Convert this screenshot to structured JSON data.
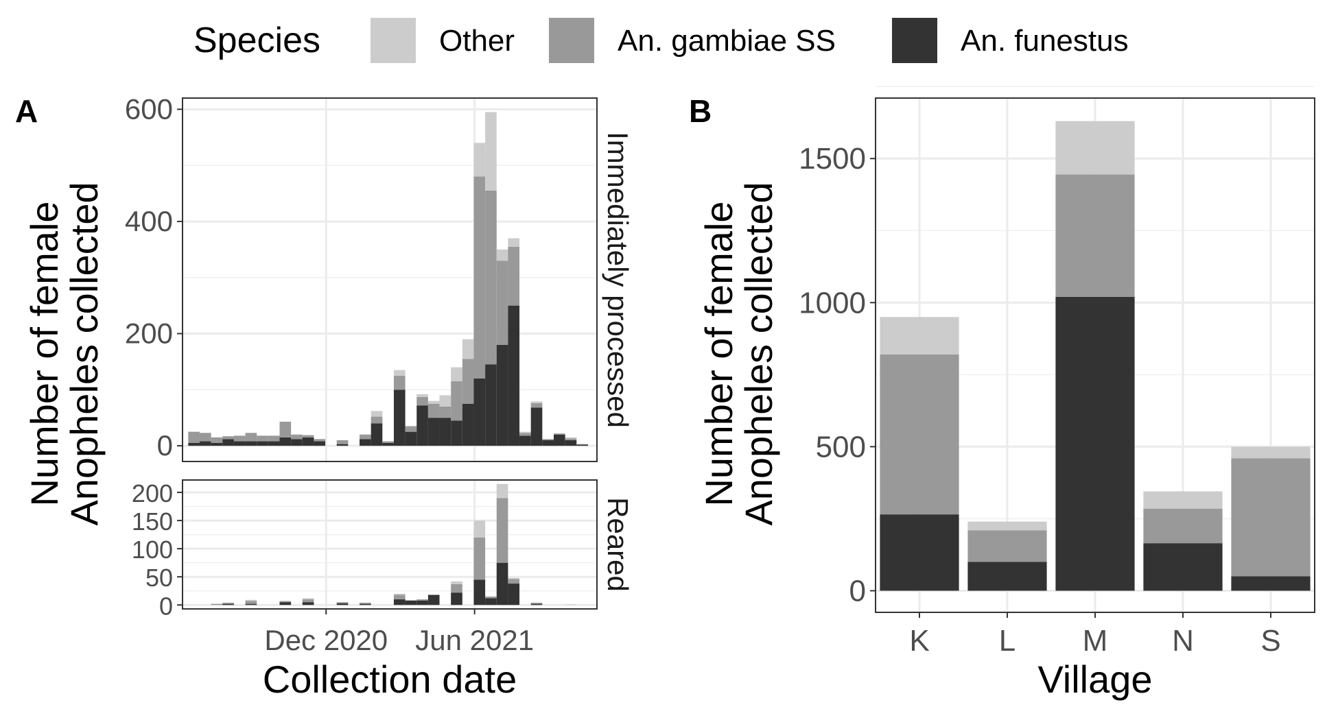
{
  "legend": {
    "title": "Species",
    "items": [
      {
        "label": "Other",
        "color": "#cccccc"
      },
      {
        "label": "An. gambiae SS",
        "color": "#999999"
      },
      {
        "label": "An. funestus",
        "color": "#333333"
      }
    ]
  },
  "panels": {
    "a": {
      "tag": "A"
    },
    "b": {
      "tag": "B"
    }
  },
  "chart_data": [
    {
      "type": "bar",
      "stacked": true,
      "panel": "A",
      "xlabel": "Collection date",
      "ylabel": "Number of female\nAnopheles collected",
      "x_ticks": [
        {
          "label": "Dec 2020",
          "date": "2020-12-01"
        },
        {
          "label": "Jun 2021",
          "date": "2021-06-01"
        }
      ],
      "grid": true,
      "x_dates": [
        "2020-06-22",
        "2020-07-06",
        "2020-07-20",
        "2020-08-03",
        "2020-08-17",
        "2020-08-31",
        "2020-09-14",
        "2020-09-28",
        "2020-10-12",
        "2020-10-26",
        "2020-11-09",
        "2020-11-23",
        "2020-12-07",
        "2020-12-21",
        "2021-01-04",
        "2021-01-18",
        "2021-02-01",
        "2021-02-15",
        "2021-03-01",
        "2021-03-15",
        "2021-03-29",
        "2021-04-12",
        "2021-04-26",
        "2021-05-10",
        "2021-05-24",
        "2021-06-07",
        "2021-06-21",
        "2021-07-05",
        "2021-07-19",
        "2021-08-02",
        "2021-08-16",
        "2021-08-30",
        "2021-09-13",
        "2021-09-27",
        "2021-10-11"
      ],
      "facets": [
        {
          "label": "Immediately processed",
          "ylim": [
            -28,
            620
          ],
          "y_ticks": [
            0,
            200,
            400,
            600
          ],
          "series": [
            {
              "name": "An. funestus",
              "values": [
                5,
                8,
                5,
                12,
                8,
                8,
                8,
                8,
                15,
                12,
                15,
                8,
                0,
                3,
                0,
                12,
                40,
                5,
                100,
                25,
                72,
                50,
                50,
                45,
                75,
                120,
                145,
                180,
                250,
                18,
                68,
                10,
                20,
                10,
                2
              ]
            },
            {
              "name": "An. gambiae SS",
              "values": [
                20,
                15,
                10,
                5,
                10,
                15,
                10,
                10,
                28,
                8,
                4,
                4,
                0,
                7,
                0,
                8,
                12,
                3,
                25,
                10,
                15,
                25,
                20,
                70,
                80,
                360,
                310,
                150,
                105,
                5,
                8,
                2,
                2,
                3,
                1
              ]
            },
            {
              "name": "Other",
              "values": [
                0,
                0,
                0,
                0,
                0,
                0,
                0,
                0,
                0,
                0,
                0,
                0,
                0,
                0,
                0,
                0,
                10,
                0,
                10,
                0,
                5,
                5,
                20,
                25,
                35,
                60,
                140,
                20,
                15,
                2,
                3,
                0,
                0,
                2,
                0
              ]
            }
          ]
        },
        {
          "label": "Reared",
          "ylim": [
            -7,
            222
          ],
          "y_ticks": [
            0,
            50,
            100,
            150,
            200
          ],
          "series": [
            {
              "name": "An. funestus",
              "values": [
                0,
                0,
                0,
                2,
                0,
                2,
                0,
                0,
                5,
                0,
                5,
                0,
                0,
                3,
                0,
                2,
                0,
                0,
                10,
                8,
                8,
                18,
                0,
                22,
                0,
                45,
                12,
                75,
                38,
                0,
                2,
                0,
                0,
                0,
                0
              ]
            },
            {
              "name": "An. gambiae SS",
              "values": [
                0,
                0,
                2,
                2,
                0,
                5,
                0,
                0,
                2,
                0,
                5,
                0,
                0,
                2,
                0,
                2,
                0,
                0,
                8,
                0,
                2,
                0,
                0,
                15,
                0,
                75,
                3,
                115,
                8,
                0,
                2,
                0,
                0,
                0,
                0
              ]
            },
            {
              "name": "Other",
              "values": [
                0,
                0,
                0,
                0,
                0,
                2,
                0,
                0,
                0,
                0,
                2,
                0,
                0,
                0,
                0,
                0,
                0,
                0,
                2,
                0,
                0,
                0,
                0,
                5,
                0,
                30,
                0,
                25,
                2,
                0,
                0,
                0,
                0,
                1,
                0
              ]
            }
          ]
        }
      ]
    },
    {
      "type": "bar",
      "stacked": true,
      "panel": "B",
      "xlabel": "Village",
      "ylabel": "Number of female\nAnopheles collected",
      "categories": [
        "K",
        "L",
        "M",
        "N",
        "S"
      ],
      "ylim": [
        -75,
        1710
      ],
      "y_ticks": [
        0,
        500,
        1000,
        1500
      ],
      "grid": true,
      "series": [
        {
          "name": "An. funestus",
          "values": [
            265,
            100,
            1020,
            165,
            50
          ]
        },
        {
          "name": "An. gambiae SS",
          "values": [
            555,
            110,
            425,
            120,
            410
          ]
        },
        {
          "name": "Other",
          "values": [
            130,
            30,
            185,
            60,
            40
          ]
        }
      ]
    }
  ]
}
